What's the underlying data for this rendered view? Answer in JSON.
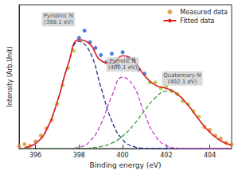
{
  "chart_data": {
    "type": "scatter",
    "x_label": "Binding energy (eV)",
    "y_label": "Intensity (Arb.Unit)",
    "xlim": [
      395.25,
      405
    ],
    "xticks": [
      396,
      398,
      400,
      402,
      404
    ],
    "ylim": [
      0,
      100
    ],
    "tick_labels": "x",
    "grid": false,
    "legend": "upper right",
    "series": [
      {
        "name": "Measured data",
        "type": "scatter",
        "marker": "circle",
        "color": "#e0892e",
        "x": [
          395.25,
          395.5,
          395.75,
          396,
          396.25,
          396.5,
          396.75,
          397,
          397.25,
          397.5,
          397.75,
          398,
          398.25,
          398.5,
          398.75,
          399,
          399.25,
          399.5,
          399.75,
          400,
          400.25,
          400.5,
          400.75,
          401,
          401.25,
          401.5,
          401.75,
          402,
          402.25,
          402.5,
          402.75,
          403,
          403.25,
          403.5,
          403.75,
          404,
          404.25,
          404.5,
          404.75,
          405
        ],
        "values": [
          1.5,
          3,
          2,
          5,
          9,
          14,
          20,
          31,
          44,
          56,
          68,
          77,
          82,
          74,
          70,
          65,
          60,
          66,
          58,
          67,
          63,
          62,
          55,
          52,
          46,
          46,
          42,
          43,
          40,
          38,
          33,
          31,
          26,
          22,
          15,
          13,
          9,
          7,
          4,
          3
        ],
        "colors": [
          "#e0892e",
          "#e0892e",
          "#e0892e",
          "#e0892e",
          "#e0892e",
          "#e0892e",
          "#e0892e",
          "#a8c23a",
          "#a8c23a",
          "#a8c23a",
          "#a8c23a",
          "#1f5fd6",
          "#1f5fd6",
          "#1f5fd6",
          "#1f5fd6",
          "#1f5fd6",
          "#1f5fd6",
          "#1f5fd6",
          "#1f5fd6",
          "#1f5fd6",
          "#1f5fd6",
          "#1f5fd6",
          "#1f5fd6",
          "#1f5fd6",
          "#a8c23a",
          "#a8c23a",
          "#a8c23a",
          "#a8c23a",
          "#a8c23a",
          "#a8c23a",
          "#a8c23a",
          "#a8c23a",
          "#a8c23a",
          "#a8c23a",
          "#e0892e",
          "#e0892e",
          "#e0892e",
          "#e0892e",
          "#e0892e",
          "#e0892e"
        ]
      },
      {
        "name": "Fitted data",
        "type": "line",
        "color": "#e02424",
        "line_style": "solid",
        "x": [
          395.5,
          396,
          396.5,
          397,
          397.5,
          398,
          398.5,
          399,
          399.5,
          400,
          400.5,
          401,
          401.5,
          402,
          402.5,
          403,
          403.5,
          404,
          404.5,
          405
        ],
        "values": [
          0.7,
          3.5,
          12.8,
          32.5,
          58.5,
          75.6,
          72.6,
          61.2,
          59.4,
          64.5,
          61.2,
          50.8,
          44.1,
          41.9,
          38.1,
          30.2,
          20.2,
          11.4,
          5.4,
          2.2
        ]
      }
    ],
    "components": [
      {
        "label": "Pyridinic N\n(398.1 eV)",
        "color": "#1b2c94",
        "line_style": "dashed",
        "x": [
          395.5,
          396,
          396.5,
          397,
          397.5,
          398,
          398.5,
          399,
          399.5,
          400,
          400.5,
          401,
          401.5,
          402,
          402.5,
          403,
          403.5,
          404,
          404.5,
          405
        ],
        "values": [
          0.7,
          3.5,
          12.8,
          32.5,
          58.4,
          74.5,
          67.1,
          42.8,
          19.3,
          6.2,
          1.4,
          0.2,
          0,
          0,
          0,
          0,
          0,
          0,
          0,
          0
        ]
      },
      {
        "label": "Pyrrolic N\n(400.1 eV)",
        "color": "#cc3fcc",
        "line_style": "dashed",
        "x": [
          395.5,
          396,
          396.5,
          397,
          397.5,
          398,
          398.5,
          399,
          399.5,
          400,
          400.5,
          401,
          401.5,
          402,
          402.5,
          403,
          403.5,
          404,
          404.5,
          405
        ],
        "values": [
          0,
          0,
          0,
          0,
          0.1,
          1.0,
          5.1,
          17.0,
          36.3,
          49.6,
          43.4,
          24.3,
          8.8,
          2.0,
          0.3,
          0,
          0,
          0,
          0,
          0
        ]
      },
      {
        "label": "Quaternary N\n(402.1 eV)",
        "color": "#3a9a3a",
        "line_style": "dashed",
        "x": [
          395.5,
          396,
          396.5,
          397,
          397.5,
          398,
          398.5,
          399,
          399.5,
          400,
          400.5,
          401,
          401.5,
          402,
          402.5,
          403,
          403.5,
          404,
          404.5,
          405
        ],
        "values": [
          0,
          0,
          0,
          0,
          0,
          0.1,
          0.4,
          1.4,
          3.8,
          8.7,
          16.4,
          26.3,
          35.3,
          39.9,
          37.8,
          30.2,
          20.2,
          11.4,
          5.4,
          2.2
        ]
      }
    ]
  }
}
